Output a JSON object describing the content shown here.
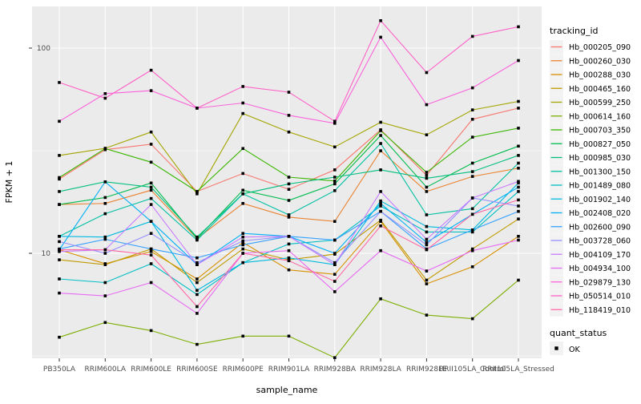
{
  "chart_data": {
    "type": "line",
    "title": "",
    "xlabel": "sample_name",
    "ylabel": "FPKM + 1",
    "y_scale": "log10",
    "ylim": [
      3.0,
      160
    ],
    "grid": true,
    "panel_bg": "#EBEBEB",
    "grid_color": "#FFFFFF",
    "point_shape": "filled-square",
    "point_color": "#000000",
    "y_ticks": [
      {
        "label": "100",
        "value": 100
      },
      {
        "label": "10",
        "value": 10
      }
    ],
    "y_minor": [
      31.62,
      3.162
    ],
    "categories": [
      "PB350LA",
      "RRIM600LA",
      "RRIM600LE",
      "RRIM600SE",
      "RRIM600PE",
      "RRIM901LA",
      "RRIM928BA",
      "RRIM928LA",
      "RRIM928LE",
      "RRII105LA_Control",
      "RRII105LA_Stressed"
    ],
    "series": [
      {
        "name": "Hb_000205_090",
        "color": "#F8766D",
        "values": [
          23,
          32,
          34,
          20,
          24.5,
          20.5,
          25.5,
          40,
          24,
          45,
          51
        ]
      },
      {
        "name": "Hb_000260_030",
        "color": "#EA8331",
        "values": [
          17.3,
          17.5,
          20.3,
          11.8,
          17.5,
          15,
          14.3,
          31.6,
          20,
          23.7,
          26
        ]
      },
      {
        "name": "Hb_000288_030",
        "color": "#D89000",
        "values": [
          10.4,
          8.9,
          10.2,
          7.5,
          11.3,
          8.3,
          7.9,
          14.3,
          7.1,
          8.6,
          12.1
        ]
      },
      {
        "name": "Hb_000465_160",
        "color": "#C09B00",
        "values": [
          9.3,
          8.8,
          10.5,
          7.2,
          10.5,
          9.3,
          9.9,
          14.5,
          7.4,
          10.5,
          14.7
        ]
      },
      {
        "name": "Hb_000599_250",
        "color": "#A3A500",
        "values": [
          30,
          32.5,
          39,
          19.5,
          48,
          39,
          33,
          43.5,
          37.8,
          50,
          55
        ]
      },
      {
        "name": "Hb_000614_160",
        "color": "#7CAE00",
        "values": [
          3.9,
          4.6,
          4.2,
          3.6,
          3.95,
          3.95,
          3.1,
          6.0,
          5.0,
          4.8,
          7.4
        ]
      },
      {
        "name": "Hb_000703_350",
        "color": "#39B600",
        "values": [
          23.4,
          32.4,
          27.8,
          20,
          32.4,
          23.5,
          22.5,
          39.6,
          24.8,
          36.8,
          40.7
        ]
      },
      {
        "name": "Hb_000827_050",
        "color": "#00BB4E",
        "values": [
          17.3,
          18.7,
          22,
          11.8,
          20.3,
          18.1,
          21.8,
          37.5,
          21,
          27.5,
          33.3
        ]
      },
      {
        "name": "Hb_000985_030",
        "color": "#00BF7D",
        "values": [
          20,
          22.3,
          21,
          12,
          19.5,
          21.8,
          23.5,
          25.5,
          23.2,
          25,
          30
        ]
      },
      {
        "name": "Hb_001300_150",
        "color": "#00C1A3",
        "values": [
          12.1,
          15.6,
          18.5,
          11.6,
          19.5,
          15.4,
          20.2,
          34.3,
          15.4,
          16.5,
          27.5
        ]
      },
      {
        "name": "Hb_001489_080",
        "color": "#00BFC4",
        "values": [
          7.5,
          7.2,
          8.9,
          6.3,
          9,
          11.1,
          11.6,
          17,
          12.7,
          12.7,
          20
        ]
      },
      {
        "name": "Hb_001902_140",
        "color": "#00BAE0",
        "values": [
          12.1,
          12,
          14.3,
          6.6,
          9,
          9.5,
          8.8,
          18,
          13.5,
          13,
          22
        ]
      },
      {
        "name": "Hb_002408_020",
        "color": "#00B0F6",
        "values": [
          10.4,
          22.3,
          14.3,
          8.8,
          12.5,
          12.1,
          10,
          17.5,
          11.3,
          15.5,
          21
        ]
      },
      {
        "name": "Hb_002600_090",
        "color": "#35A2FF",
        "values": [
          10.5,
          11.7,
          10.5,
          9.5,
          11,
          12.1,
          11.6,
          16,
          10.5,
          13,
          16
        ]
      },
      {
        "name": "Hb_003728_060",
        "color": "#9590FF",
        "values": [
          11.4,
          10,
          12.5,
          9,
          11.5,
          12.1,
          9,
          16,
          11,
          18.6,
          17
        ]
      },
      {
        "name": "Hb_004109_170",
        "color": "#C77CFF",
        "values": [
          10.2,
          10.4,
          17.3,
          8.8,
          12,
          12.1,
          8.8,
          20,
          11.7,
          18.6,
          22.4
        ]
      },
      {
        "name": "Hb_004934_100",
        "color": "#E76BF3",
        "values": [
          6.4,
          6.2,
          7.2,
          5.1,
          10,
          10.3,
          6.5,
          10.3,
          8.2,
          10.3,
          11.6
        ]
      },
      {
        "name": "Hb_029879_130",
        "color": "#FA62DB",
        "values": [
          44,
          60,
          62,
          51,
          54,
          47,
          43,
          113,
          53,
          64,
          87
        ]
      },
      {
        "name": "Hb_050514_010",
        "color": "#FF61C7",
        "values": [
          68,
          57,
          78,
          51,
          65,
          61,
          44,
          136,
          76,
          114,
          127
        ]
      },
      {
        "name": "Hb_118419_010",
        "color": "#FF69A8",
        "values": [
          10.4,
          10.4,
          9.8,
          5.5,
          10,
          9.2,
          7.3,
          13.6,
          10.4,
          15.5,
          18.2
        ]
      }
    ],
    "legend_position": "right"
  },
  "legend": {
    "tracking_title": "tracking_id",
    "quant_title": "quant_status",
    "quant_items": [
      {
        "label": "OK",
        "shape": "filled-square",
        "color": "#000000"
      }
    ],
    "key_bg": "#F2F2F2"
  }
}
